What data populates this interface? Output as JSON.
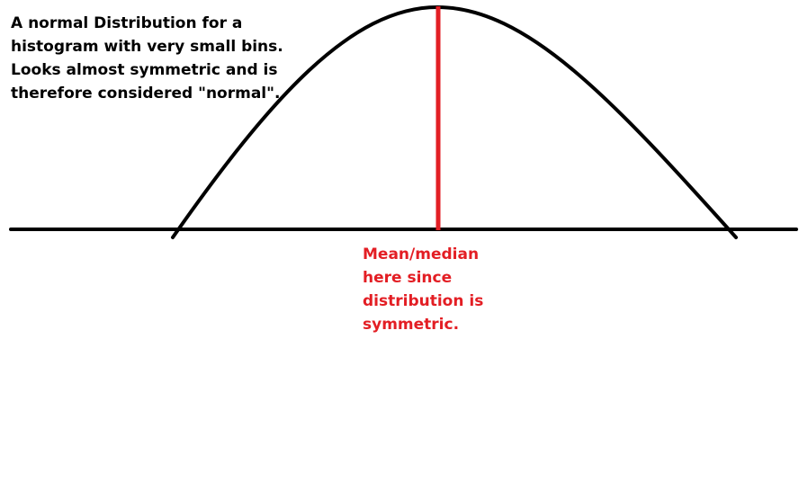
{
  "diagram": {
    "type": "normal-distribution-sketch",
    "colors": {
      "curve": "#000000",
      "axis": "#000000",
      "mean_line": "#e31e24",
      "mean_text": "#e31e24",
      "background": "#ffffff"
    },
    "title_note": {
      "lines": [
        "A normal Distribution for a",
        "histogram with very small bins.",
        "Looks almost symmetric and is",
        "therefore considered \"normal\"."
      ]
    },
    "mean_note": {
      "lines": [
        "Mean/median",
        "here since",
        "distribution is",
        "symmetric."
      ]
    }
  }
}
